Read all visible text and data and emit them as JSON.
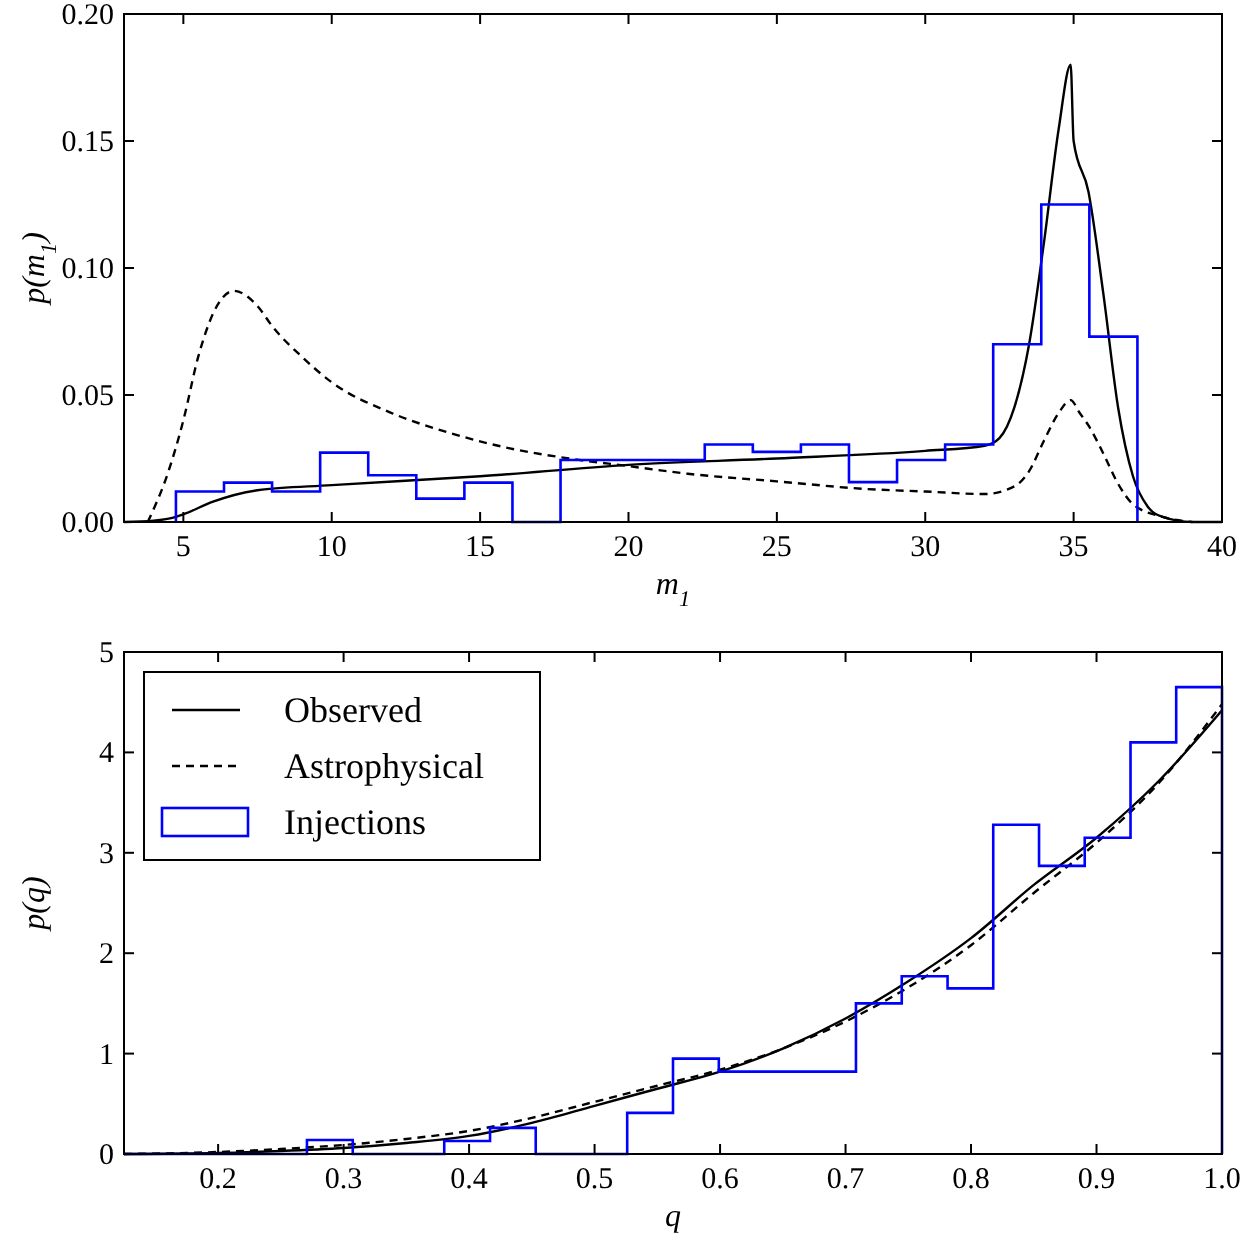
{
  "chart_data": [
    {
      "type": "line",
      "xlabel": "m$_{1}$",
      "ylabel": "p(m$_{1}$)",
      "xlim": [
        3,
        40
      ],
      "ylim": [
        0,
        0.2
      ],
      "xticks": [
        5,
        10,
        15,
        20,
        25,
        30,
        35,
        40
      ],
      "yticks": [
        {
          "value": 0,
          "label": "0.00"
        },
        {
          "value": 0.05,
          "label": "0.05"
        },
        {
          "value": 0.1,
          "label": "0.10"
        },
        {
          "value": 0.15,
          "label": "0.15"
        },
        {
          "value": 0.2,
          "label": "0.20"
        }
      ],
      "grid": false,
      "legend": false,
      "series": [
        {
          "color": "#000000",
          "line_style": "solid",
          "x": [
            3,
            4,
            4.75,
            5,
            6,
            7.5,
            10,
            15,
            20,
            25,
            30,
            32,
            32.5,
            33,
            33.5,
            34,
            34.5,
            34.9,
            35,
            35.5,
            36,
            36.5,
            37,
            37.5,
            38,
            39,
            40
          ],
          "values": [
            0,
            0.0005,
            0.002,
            0.003,
            0.008,
            0.0125,
            0.0145,
            0.018,
            0.0225,
            0.025,
            0.028,
            0.03,
            0.033,
            0.045,
            0.07,
            0.11,
            0.155,
            0.18,
            0.15,
            0.13,
            0.09,
            0.045,
            0.018,
            0.006,
            0.002,
            0,
            0
          ]
        },
        {
          "color": "#000000",
          "line_style": "dashed",
          "x": [
            3.8,
            4.5,
            5,
            5.5,
            6,
            6.7,
            7.5,
            8,
            9,
            10,
            12,
            14,
            16,
            18,
            20,
            22,
            25,
            28,
            30,
            32,
            33,
            33.5,
            34,
            34.5,
            34.9,
            35.2,
            35.5,
            36,
            36.5,
            37,
            38,
            39
          ],
          "values": [
            0,
            0.02,
            0.04,
            0.065,
            0.082,
            0.091,
            0.085,
            0.077,
            0.065,
            0.055,
            0.043,
            0.035,
            0.029,
            0.025,
            0.022,
            0.019,
            0.016,
            0.013,
            0.012,
            0.011,
            0.014,
            0.02,
            0.032,
            0.043,
            0.048,
            0.043,
            0.038,
            0.027,
            0.015,
            0.007,
            0.002,
            0
          ]
        },
        {
          "type": "histogram",
          "color": "#0000ff",
          "bins": [
            4.75,
            6.37,
            7.99,
            9.61,
            11.23,
            12.85,
            14.47,
            16.09,
            17.71,
            19.33,
            20.95,
            22.57,
            24.19,
            25.81,
            27.43,
            29.05,
            30.67,
            32.29,
            33.91,
            35.53,
            37.15
          ],
          "values": [
            0.012,
            0.0155,
            0.012,
            0.0273,
            0.0184,
            0.0092,
            0.0155,
            0,
            0.0244,
            0.0244,
            0.0244,
            0.0305,
            0.0276,
            0.0305,
            0.0157,
            0.0244,
            0.0305,
            0.07,
            0.125,
            0.073
          ]
        }
      ]
    },
    {
      "type": "line",
      "xlabel": "q",
      "ylabel": "p(q)",
      "xlim": [
        0.125,
        1
      ],
      "ylim": [
        0,
        5
      ],
      "xticks": [
        0.2,
        0.3,
        0.4,
        0.5,
        0.6,
        0.7,
        0.8,
        0.9,
        {
          "value": 1,
          "label": "1.0"
        }
      ],
      "yticks": [
        0,
        1,
        2,
        3,
        4,
        5
      ],
      "grid": false,
      "legend": "top left",
      "series": [
        {
          "name": "Observed",
          "color": "#000000",
          "line_style": "solid",
          "x": [
            0.125,
            0.2,
            0.25,
            0.3,
            0.35,
            0.4,
            0.45,
            0.5,
            0.55,
            0.6,
            0.65,
            0.7,
            0.75,
            0.8,
            0.85,
            0.9,
            0.95,
            1
          ],
          "values": [
            0,
            0.01,
            0.03,
            0.06,
            0.11,
            0.18,
            0.31,
            0.48,
            0.65,
            0.82,
            1.05,
            1.35,
            1.72,
            2.15,
            2.68,
            3.15,
            3.72,
            4.42
          ]
        },
        {
          "name": "Astrophysical",
          "color": "#000000",
          "line_style": "dashed",
          "x": [
            0.125,
            0.2,
            0.25,
            0.3,
            0.35,
            0.4,
            0.45,
            0.5,
            0.55,
            0.6,
            0.65,
            0.7,
            0.75,
            0.8,
            0.85,
            0.9,
            0.95,
            1
          ],
          "values": [
            0,
            0.02,
            0.05,
            0.09,
            0.15,
            0.23,
            0.36,
            0.52,
            0.68,
            0.84,
            1.05,
            1.32,
            1.66,
            2.08,
            2.6,
            3.1,
            3.7,
            4.48
          ]
        },
        {
          "type": "histogram",
          "name": "Injections",
          "color": "#0000ff",
          "bins": [
            0.125,
            0.1615,
            0.1979,
            0.2344,
            0.2708,
            0.3073,
            0.3438,
            0.3802,
            0.4167,
            0.4531,
            0.4896,
            0.526,
            0.5625,
            0.599,
            0.6354,
            0.6719,
            0.7083,
            0.7448,
            0.7813,
            0.8177,
            0.8542,
            0.8906,
            0.9271,
            0.9635,
            1
          ],
          "values": [
            0,
            0,
            0,
            0,
            0.14,
            0,
            0,
            0.13,
            0.26,
            0,
            0,
            0.41,
            0.95,
            0.82,
            0.82,
            0.82,
            1.5,
            1.77,
            1.65,
            3.28,
            2.87,
            3.15,
            4.1,
            4.65
          ]
        }
      ]
    }
  ]
}
